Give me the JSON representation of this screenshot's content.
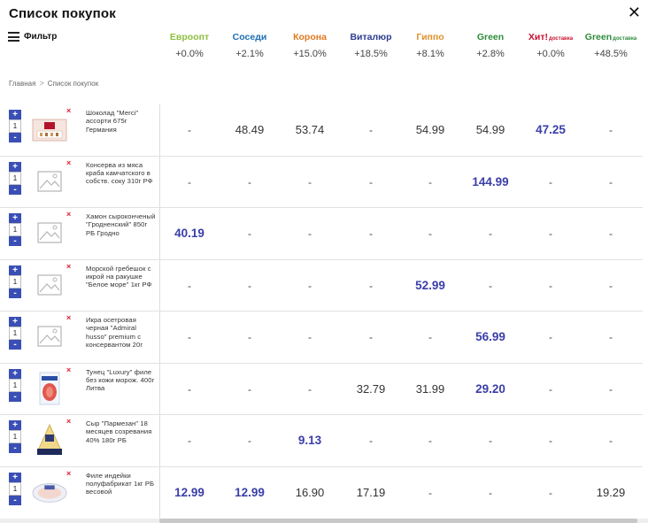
{
  "window": {
    "title": "Список покупок",
    "close_glyph": "✕"
  },
  "filter": {
    "label": "Фильтр",
    "icon": "filter-lines-icon"
  },
  "breadcrumb": {
    "home": "Главная",
    "current": "Список покупок",
    "separator": ">"
  },
  "stores": [
    {
      "name": "Евроопт",
      "suffix": "",
      "change": "+0.0%",
      "color": "#8cbf3f"
    },
    {
      "name": "Соседи",
      "suffix": "",
      "change": "+2.1%",
      "color": "#1e6fb3"
    },
    {
      "name": "Корона",
      "suffix": "",
      "change": "+15.0%",
      "color": "#e07a1f"
    },
    {
      "name": "Виталюр",
      "suffix": "",
      "change": "+18.5%",
      "color": "#2a3d8f"
    },
    {
      "name": "Гиппо",
      "suffix": "",
      "change": "+8.1%",
      "color": "#e0922a"
    },
    {
      "name": "Green",
      "suffix": "",
      "change": "+2.8%",
      "color": "#2e8b3a"
    },
    {
      "name": "Хит!",
      "suffix": "ДОСТАВКА",
      "change": "+0.0%",
      "color": "#c8102e"
    },
    {
      "name": "Green",
      "suffix": "ДОСТАВКА",
      "change": "+48.5%",
      "color": "#2e8b3a"
    }
  ],
  "products": [
    {
      "name": "Шоколад \"Merci\" ассорти 675г Германия",
      "qty": "1",
      "thumb": "merci-box",
      "prices": [
        "-",
        "48.49",
        "53.74",
        "-",
        "54.99",
        "54.99",
        "47.25",
        "-"
      ],
      "best": 6
    },
    {
      "name": "Консерва из мяса краба камчатского в собств. соку 310г РФ",
      "qty": "1",
      "thumb": "placeholder",
      "prices": [
        "-",
        "-",
        "-",
        "-",
        "-",
        "144.99",
        "-",
        "-"
      ],
      "best": 5
    },
    {
      "name": "Хамон сыроконченый \"Гродненский\" 850г РБ Гродно",
      "qty": "1",
      "thumb": "placeholder",
      "prices": [
        "40.19",
        "-",
        "-",
        "-",
        "-",
        "-",
        "-",
        "-"
      ],
      "best": 0
    },
    {
      "name": "Морской гребешок с икрой на ракушке \"Белое море\" 1кг РФ",
      "qty": "1",
      "thumb": "placeholder",
      "prices": [
        "-",
        "-",
        "-",
        "-",
        "52.99",
        "-",
        "-",
        "-"
      ],
      "best": 4
    },
    {
      "name": "Икра осетровая черная \"Admiral husso\" premium с консервантом 20г",
      "qty": "1",
      "thumb": "placeholder",
      "prices": [
        "-",
        "-",
        "-",
        "-",
        "-",
        "56.99",
        "-",
        "-"
      ],
      "best": 5
    },
    {
      "name": "Тунец \"Luxury\" филе без кожи морож. 400г Литва",
      "qty": "1",
      "thumb": "tuna-pack",
      "prices": [
        "-",
        "-",
        "-",
        "32.79",
        "31.99",
        "29.20",
        "-",
        "-"
      ],
      "best": 5
    },
    {
      "name": "Сыр \"Пармезан\" 18 месяцев созревания 40% 180г РБ",
      "qty": "1",
      "thumb": "parmesan",
      "prices": [
        "-",
        "-",
        "9.13",
        "-",
        "-",
        "-",
        "-",
        "-"
      ],
      "best": 2
    },
    {
      "name": "Филе индейки полуфабрикат 1кг РБ весовой",
      "qty": "1",
      "thumb": "turkey-tray",
      "prices": [
        "12.99",
        "12.99",
        "16.90",
        "17.19",
        "-",
        "-",
        "-",
        "19.29"
      ],
      "best": [
        0,
        1
      ]
    }
  ],
  "controls": {
    "plus": "+",
    "minus": "-",
    "remove": "×"
  },
  "theme": {
    "accent": "#3a4fb5",
    "best_price": "#3a3ea8"
  }
}
